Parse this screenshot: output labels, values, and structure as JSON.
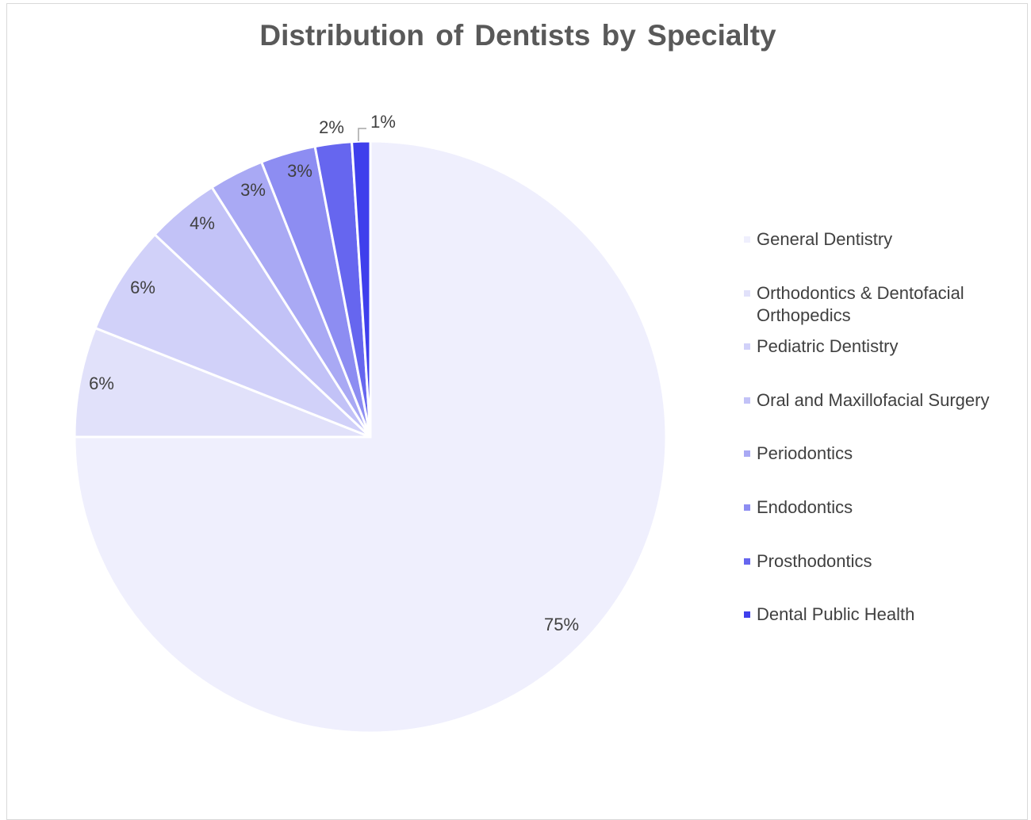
{
  "chart_data": {
    "type": "pie",
    "title": "Distribution of Dentists by Specialty",
    "legend_position": "right",
    "categories": [
      "General Dentistry",
      "Orthodontics & Dentofacial Orthopedics",
      "Pediatric Dentistry",
      "Oral and Maxillofacial Surgery",
      "Periodontics",
      "Endodontics",
      "Prosthodontics",
      "Dental Public Health"
    ],
    "values": [
      75,
      6,
      6,
      4,
      3,
      3,
      2,
      1
    ],
    "labels": [
      "75%",
      "6%",
      "6%",
      "4%",
      "3%",
      "3%",
      "2%",
      "1%"
    ],
    "colors": [
      "#efeffd",
      "#e1e1fa",
      "#d1d1f9",
      "#c2c2f7",
      "#a9a9f4",
      "#8d8df2",
      "#6666ef",
      "#3f3fec"
    ]
  }
}
